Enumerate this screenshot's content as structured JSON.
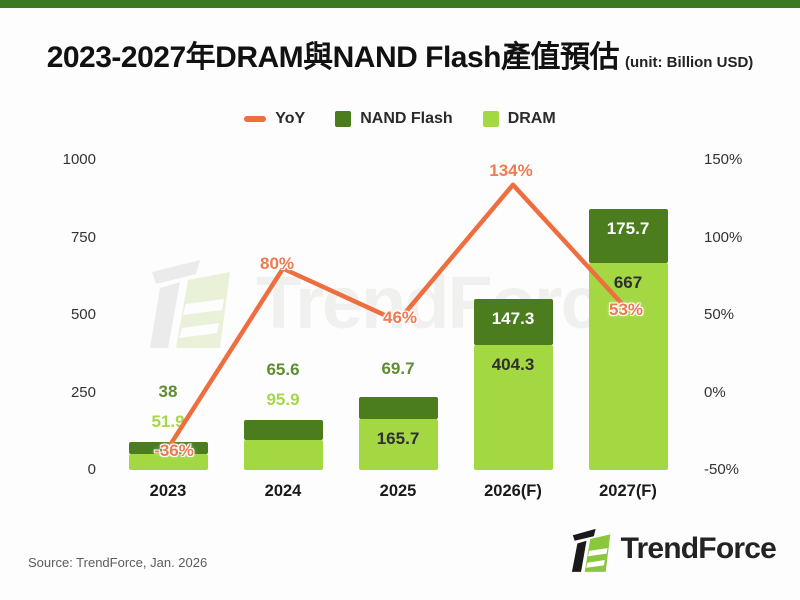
{
  "banner": {
    "color": "#3b7a22"
  },
  "header": {
    "title": "2023-2027年DRAM與NAND Flash產值預估",
    "unit": "(unit: Billion USD)"
  },
  "legend": [
    {
      "label": "YoY",
      "swatch": "dash",
      "color": "#ed6e3e"
    },
    {
      "label": "NAND Flash",
      "swatch": "square",
      "color": "#4b7d1f"
    },
    {
      "label": "DRAM",
      "swatch": "square",
      "color": "#a3d843"
    }
  ],
  "chart_data": {
    "type": "bar",
    "subtype": "stacked-bar-with-line",
    "title": "2023-2027年DRAM與NAND Flash產值預估",
    "unit": "Billion USD",
    "categories": [
      "2023",
      "2024",
      "2025",
      "2026(F)",
      "2027(F)"
    ],
    "series": [
      {
        "name": "DRAM",
        "type": "bar",
        "stack": true,
        "color": "#a3d843",
        "values": [
          51.9,
          95.9,
          165.7,
          404.3,
          667
        ],
        "labels": [
          "51.9",
          "95.9",
          "165.7",
          "404.3",
          "667"
        ],
        "label_pos": [
          "above",
          "above",
          "inside",
          "inside",
          "inside"
        ],
        "label_color_above": "#a6d64a",
        "label_color_inside": "#2f2f2f"
      },
      {
        "name": "NAND Flash",
        "type": "bar",
        "stack": true,
        "color": "#4b7d1f",
        "values": [
          38,
          65.6,
          69.7,
          147.3,
          175.7
        ],
        "labels": [
          "38",
          "65.6",
          "69.7",
          "147.3",
          "175.7"
        ],
        "label_pos": [
          "above",
          "above",
          "above",
          "inside",
          "inside"
        ],
        "label_color_above": "#5d8d33",
        "label_color_inside": "#ffffff"
      },
      {
        "name": "YoY",
        "type": "line",
        "axis": "right",
        "color": "#ed6e3e",
        "values": [
          -36,
          80,
          46,
          134,
          53
        ],
        "labels": [
          "-36%",
          "80%",
          "46%",
          "134%",
          "53%"
        ]
      }
    ],
    "left_axis": {
      "tick_labels": [
        "1000",
        "750",
        "500",
        "250",
        "0"
      ],
      "tick_values": [
        1000,
        750,
        500,
        250,
        0
      ],
      "range": [
        0,
        1000
      ]
    },
    "right_axis": {
      "tick_labels": [
        "150%",
        "100%",
        "50%",
        "0%",
        "-50%"
      ],
      "tick_values": [
        150,
        100,
        50,
        0,
        -50
      ],
      "range": [
        -50,
        150
      ]
    },
    "grid": false,
    "legend_position": "top"
  },
  "watermark": {
    "text": "TrendForce"
  },
  "footer": {
    "source": "Source: TrendForce, Jan. 2026",
    "brand": "TrendForce"
  }
}
